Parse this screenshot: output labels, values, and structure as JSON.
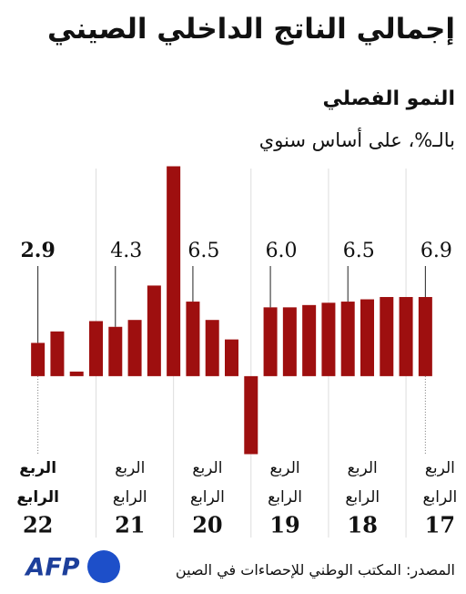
{
  "title": "إجمالي الناتج الداخلي الصيني",
  "subtitle": "النمو الفصلي",
  "unit_note": "بالـ%، على أساس سنوي",
  "source": "المصدر: المكتب الوطني للإحصاءات في الصين",
  "logo": "AFP",
  "chart_data": {
    "type": "bar",
    "categories": [
      "22",
      null,
      null,
      null,
      "21",
      null,
      null,
      null,
      "20",
      null,
      null,
      null,
      "19",
      null,
      null,
      null,
      "18",
      null,
      null,
      null,
      "17"
    ],
    "quarter_label": [
      "الربع",
      "الرابع"
    ],
    "values": [
      2.9,
      3.9,
      0.4,
      4.8,
      4.3,
      4.9,
      7.9,
      18.3,
      6.5,
      4.9,
      3.2,
      -6.8,
      6.0,
      6.0,
      6.2,
      6.4,
      6.5,
      6.7,
      6.9,
      6.9,
      6.9
    ],
    "value_labels": [
      "2.9",
      null,
      null,
      null,
      "4.3",
      null,
      null,
      null,
      "6.5",
      null,
      null,
      null,
      "6.0",
      null,
      null,
      null,
      "6.5",
      null,
      null,
      null,
      "6.9"
    ],
    "color": "#9e0f0f",
    "ylim": [
      -7,
      18.5
    ]
  }
}
